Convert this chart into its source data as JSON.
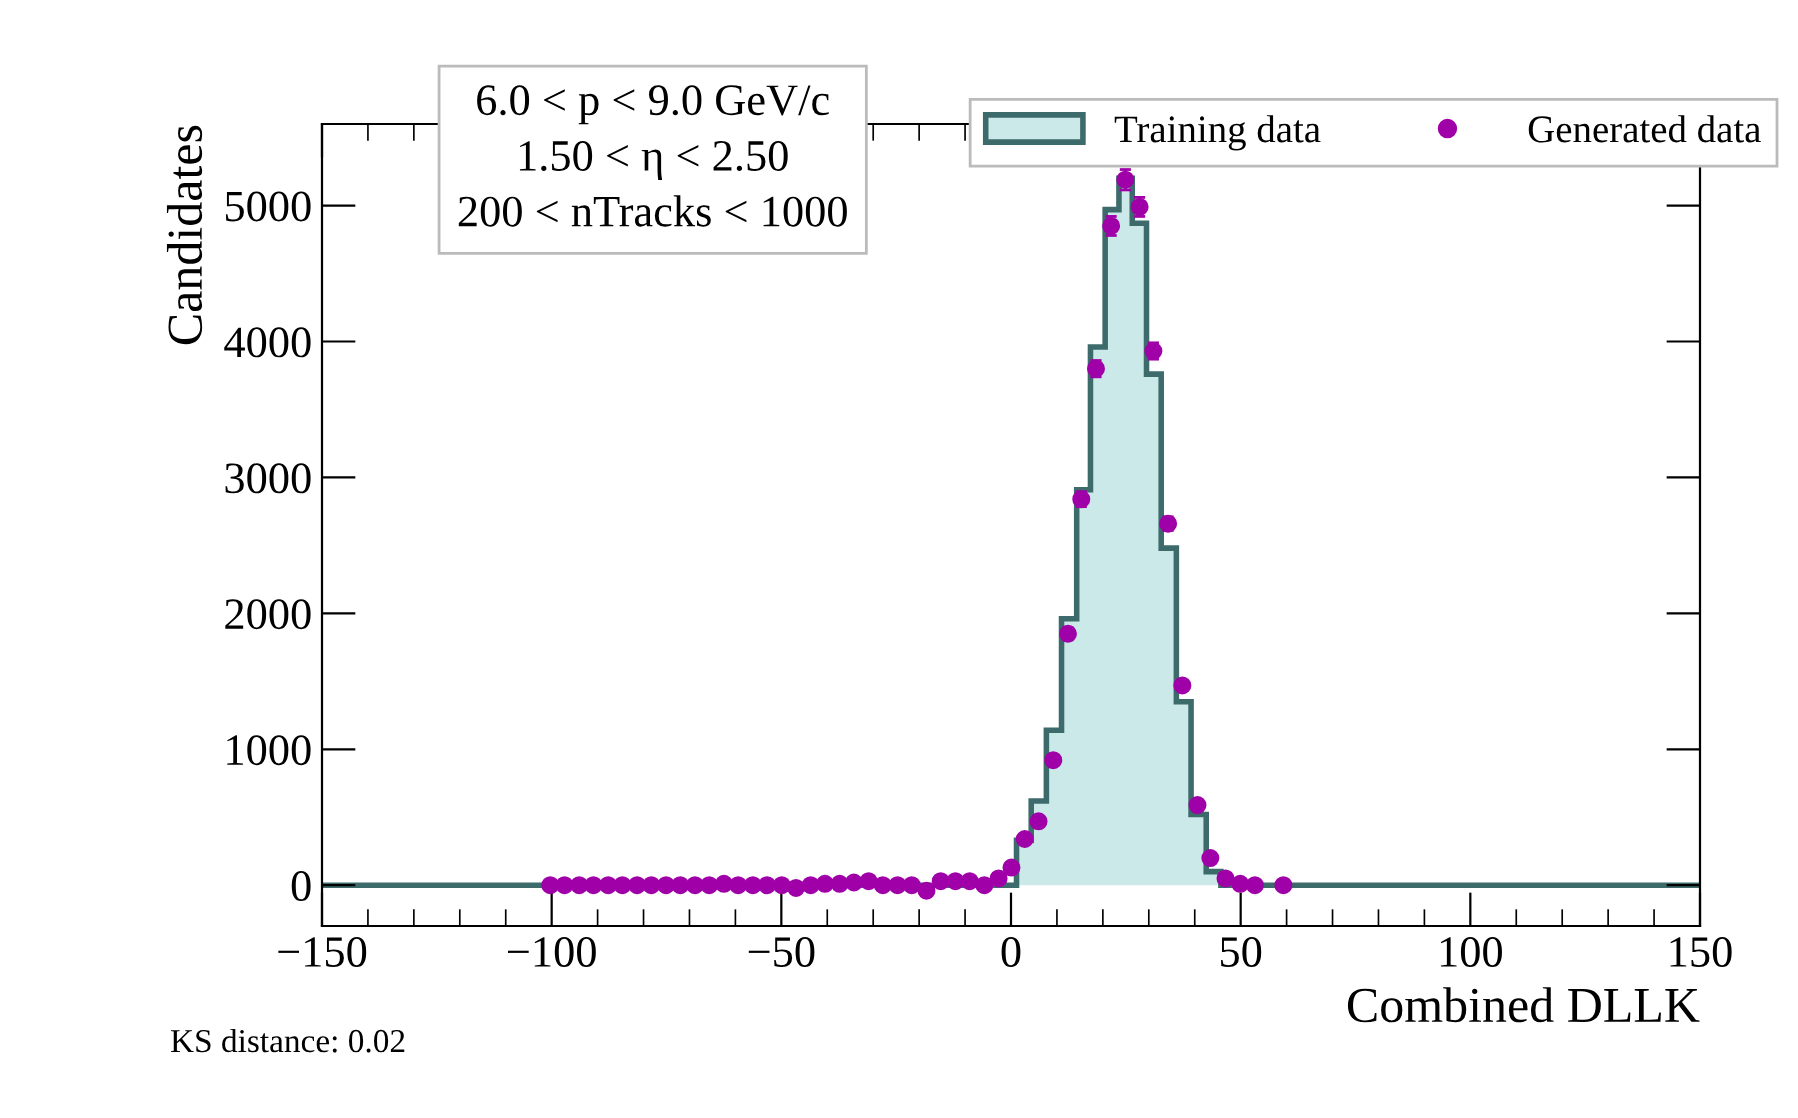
{
  "chart_data": {
    "type": "histogram",
    "xlabel": "Combined DLLK",
    "ylabel": "Candidates",
    "xlim": [
      -150,
      150
    ],
    "xticks": [
      {
        "value": -150,
        "label": "−150"
      },
      {
        "value": -100,
        "label": "−100"
      },
      {
        "value": -50,
        "label": "−50"
      },
      0,
      50,
      100,
      150
    ],
    "ylim": [
      -300,
      5600
    ],
    "yticks": [
      0,
      1000,
      2000,
      3000,
      4000,
      5000
    ],
    "grid": false,
    "legend": "top right",
    "annotations": [
      "6.0 < p < 9.0 GeV/c",
      "1.50 < η < 2.50",
      "200 < nTracks < 1000",
      "KS distance: 0.02"
    ],
    "series": [
      {
        "name": "Training data",
        "color": "#cce9e9",
        "bins": [
          -150,
          1.2,
          4.4,
          7.7,
          11.0,
          14.3,
          17.3,
          20.5,
          23.5,
          26.4,
          29.5,
          32.7,
          36.0,
          39.2,
          42.5,
          45.7,
          150
        ],
        "values": [
          0,
          330,
          620,
          1140,
          1960,
          2910,
          3960,
          4970,
          5200,
          4870,
          3760,
          2480,
          1350,
          520,
          100,
          0
        ]
      },
      {
        "name": "Generated data",
        "type": "scatter",
        "color": "#a000a8",
        "marker": "circle",
        "x": [
          -100.3,
          -97.2,
          -94.0,
          -90.9,
          -87.7,
          -84.6,
          -81.4,
          -78.3,
          -75.1,
          -72.0,
          -68.8,
          -65.7,
          -62.5,
          -59.4,
          -56.2,
          -53.1,
          -49.9,
          -46.8,
          -43.6,
          -40.5,
          -37.3,
          -34.2,
          -31.0,
          -27.9,
          -24.7,
          -21.6,
          -18.4,
          -15.3,
          -12.1,
          -9.0,
          -5.8,
          -2.7,
          0.1,
          3.0,
          6.0,
          9.2,
          12.4,
          15.3,
          18.5,
          21.8,
          24.9,
          28.0,
          31.0,
          34.2,
          37.3,
          40.6,
          43.4,
          46.7,
          49.9,
          53.1,
          59.3
        ],
        "values": [
          0,
          0,
          0,
          0,
          0,
          0,
          0,
          0,
          0,
          0,
          0,
          0,
          10,
          0,
          0,
          0,
          0,
          -20,
          0,
          10,
          10,
          20,
          30,
          0,
          0,
          0,
          -40,
          30,
          30,
          30,
          0,
          50,
          130,
          340,
          470,
          920,
          1850,
          2840,
          3800,
          4850,
          5190,
          4990,
          3930,
          2660,
          1470,
          590,
          200,
          50,
          10,
          0,
          0
        ],
        "errors": [
          null,
          null,
          null,
          null,
          null,
          null,
          null,
          null,
          null,
          null,
          null,
          null,
          null,
          null,
          null,
          null,
          null,
          null,
          null,
          null,
          null,
          null,
          null,
          null,
          null,
          null,
          null,
          null,
          null,
          null,
          null,
          null,
          null,
          null,
          null,
          null,
          45,
          55,
          60,
          70,
          75,
          70,
          60,
          50,
          null,
          null,
          null,
          null,
          null,
          null,
          null
        ]
      }
    ]
  }
}
